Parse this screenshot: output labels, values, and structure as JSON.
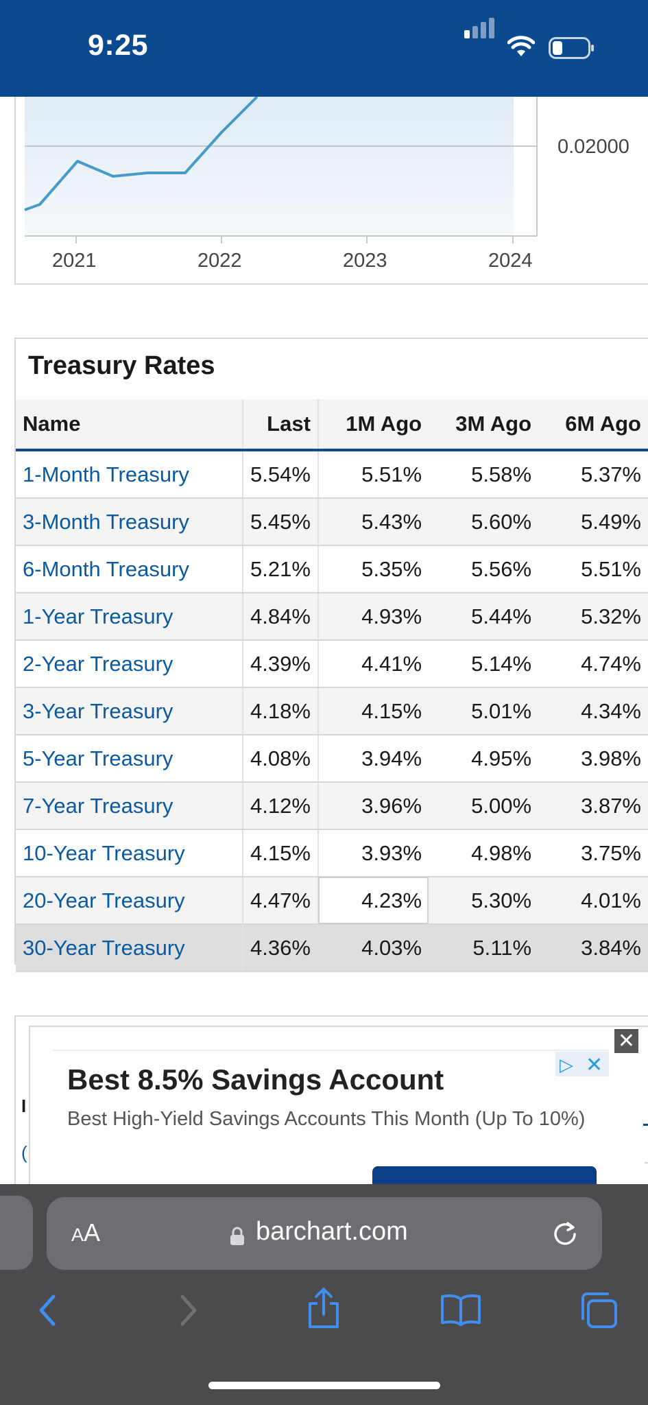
{
  "status_bar": {
    "time": "9:25"
  },
  "chart": {
    "y_tick_label": "0.02000",
    "x_tick_labels": [
      "2021",
      "2022",
      "2023",
      "2024"
    ],
    "line_color": "#4a9ac9",
    "fill_color": "#e8f1f8"
  },
  "treasury_table": {
    "title": "Treasury Rates",
    "columns": [
      "Name",
      "Last",
      "1M Ago",
      "3M Ago",
      "6M Ago"
    ],
    "rows": [
      {
        "name": "1-Month Treasury",
        "last": "5.54%",
        "m1": "5.51%",
        "m3": "5.58%",
        "m6": "5.37%"
      },
      {
        "name": "3-Month Treasury",
        "last": "5.45%",
        "m1": "5.43%",
        "m3": "5.60%",
        "m6": "5.49%"
      },
      {
        "name": "6-Month Treasury",
        "last": "5.21%",
        "m1": "5.35%",
        "m3": "5.56%",
        "m6": "5.51%"
      },
      {
        "name": "1-Year Treasury",
        "last": "4.84%",
        "m1": "4.93%",
        "m3": "5.44%",
        "m6": "5.32%"
      },
      {
        "name": "2-Year Treasury",
        "last": "4.39%",
        "m1": "4.41%",
        "m3": "5.14%",
        "m6": "4.74%"
      },
      {
        "name": "3-Year Treasury",
        "last": "4.18%",
        "m1": "4.15%",
        "m3": "5.01%",
        "m6": "4.34%"
      },
      {
        "name": "5-Year Treasury",
        "last": "4.08%",
        "m1": "3.94%",
        "m3": "4.95%",
        "m6": "3.98%"
      },
      {
        "name": "7-Year Treasury",
        "last": "4.12%",
        "m1": "3.96%",
        "m3": "5.00%",
        "m6": "3.87%"
      },
      {
        "name": "10-Year Treasury",
        "last": "4.15%",
        "m1": "3.93%",
        "m3": "4.98%",
        "m6": "3.75%"
      },
      {
        "name": "20-Year Treasury",
        "last": "4.47%",
        "m1": "4.23%",
        "m3": "5.30%",
        "m6": "4.01%"
      },
      {
        "name": "30-Year Treasury",
        "last": "4.36%",
        "m1": "4.03%",
        "m3": "5.11%",
        "m6": "3.84%"
      }
    ]
  },
  "ad": {
    "close_symbol": "✕",
    "headline": "Best 8.5% Savings Account",
    "body": "Best High-Yield Savings Accounts This Month (Up To 10%)"
  },
  "browser": {
    "text_size_label_small": "A",
    "text_size_label_large": "A",
    "domain": "barchart.com"
  }
}
